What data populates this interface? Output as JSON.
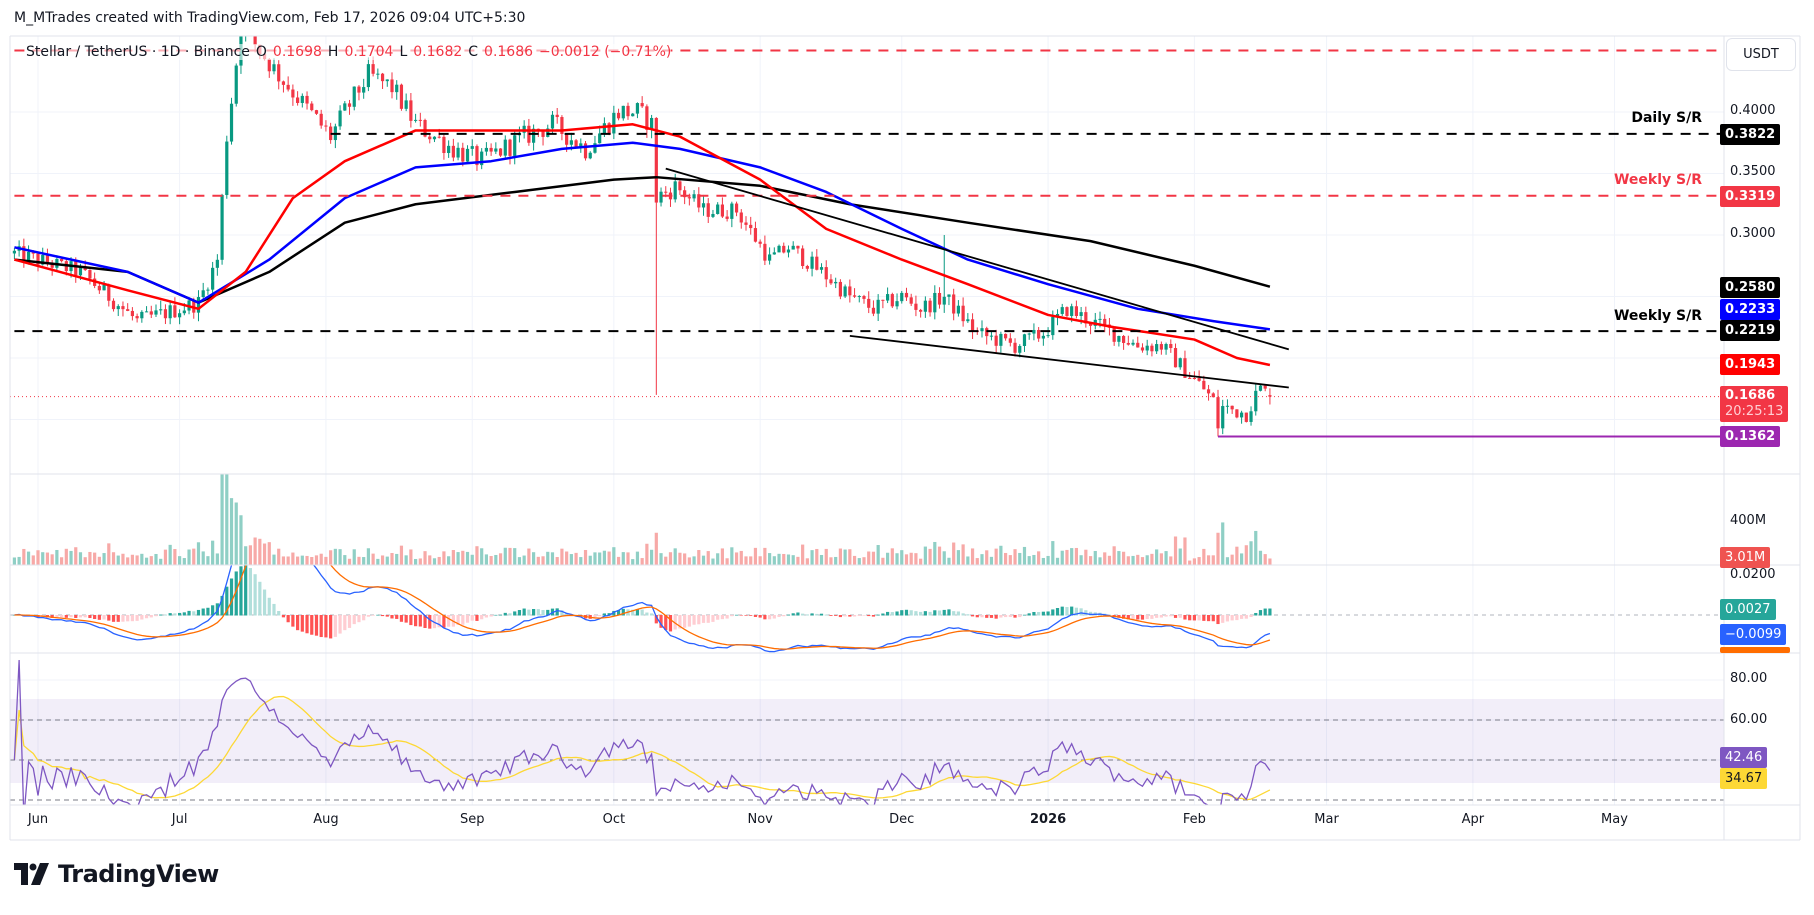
{
  "header": {
    "credit": "M_MTrades created with TradingView.com, Feb 17, 2026 09:04 UTC+5:30"
  },
  "legend": {
    "symbol": "Stellar / TetherUS · 1D · Binance",
    "o_label": "O",
    "o": "0.1698",
    "h_label": "H",
    "h": "0.1704",
    "l_label": "L",
    "l": "0.1682",
    "c_label": "C",
    "c": "0.1686",
    "change": "−0.0012 (−0.71%)"
  },
  "currency_button": "USDT",
  "brand": "TradingView",
  "colors": {
    "up": "#089981",
    "down": "#f23645",
    "ma50": "#ff0000",
    "ma100": "#0000ff",
    "ma200": "#000000",
    "macd": "#2962ff",
    "signal": "#ff6d00",
    "rsi": "#7e57c2",
    "rsi_ma": "#fdd835",
    "low_line": "#9c27b0"
  },
  "chart_data": {
    "type": "candlestick",
    "title": "Stellar / TetherUS · 1D · Binance",
    "x_unit": "days since 2025-06-01",
    "x_ticks": [
      {
        "label": "Jun",
        "day": 0
      },
      {
        "label": "Jul",
        "day": 30
      },
      {
        "label": "Aug",
        "day": 61
      },
      {
        "label": "Sep",
        "day": 92
      },
      {
        "label": "Oct",
        "day": 122
      },
      {
        "label": "Nov",
        "day": 153
      },
      {
        "label": "Dec",
        "day": 183
      },
      {
        "label": "2026",
        "day": 214
      },
      {
        "label": "Feb",
        "day": 245
      },
      {
        "label": "Mar",
        "day": 273
      },
      {
        "label": "Apr",
        "day": 304
      },
      {
        "label": "May",
        "day": 334
      }
    ],
    "y_ticks": [
      "0.4000",
      "0.3500",
      "0.3000"
    ],
    "y_tick_values": [
      0.4,
      0.35,
      0.3
    ],
    "price_path": [
      [
        -5,
        0.285
      ],
      [
        9,
        0.27
      ],
      [
        21,
        0.23
      ],
      [
        30,
        0.24
      ],
      [
        34,
        0.245
      ],
      [
        38,
        0.28
      ],
      [
        40,
        0.38
      ],
      [
        43,
        0.47
      ],
      [
        47,
        0.45
      ],
      [
        51,
        0.43
      ],
      [
        62,
        0.38
      ],
      [
        65,
        0.4
      ],
      [
        70,
        0.43
      ],
      [
        75,
        0.42
      ],
      [
        80,
        0.39
      ],
      [
        88,
        0.37
      ],
      [
        94,
        0.36
      ],
      [
        103,
        0.38
      ],
      [
        109,
        0.39
      ],
      [
        116,
        0.37
      ],
      [
        123,
        0.4
      ],
      [
        127,
        0.4
      ],
      [
        130,
        0.39
      ],
      [
        131,
        0.33
      ],
      [
        135,
        0.34
      ],
      [
        141,
        0.32
      ],
      [
        148,
        0.32
      ],
      [
        155,
        0.28
      ],
      [
        159,
        0.29
      ],
      [
        166,
        0.27
      ],
      [
        172,
        0.25
      ],
      [
        177,
        0.24
      ],
      [
        183,
        0.25
      ],
      [
        187,
        0.24
      ],
      [
        192,
        0.25
      ],
      [
        199,
        0.22
      ],
      [
        207,
        0.21
      ],
      [
        213,
        0.22
      ],
      [
        218,
        0.24
      ],
      [
        223,
        0.23
      ],
      [
        228,
        0.22
      ],
      [
        233,
        0.21
      ],
      [
        238,
        0.21
      ],
      [
        243,
        0.19
      ],
      [
        247,
        0.175
      ],
      [
        249,
        0.165
      ],
      [
        250,
        0.145
      ],
      [
        251,
        0.16
      ],
      [
        256,
        0.155
      ],
      [
        258,
        0.17
      ],
      [
        259,
        0.175
      ],
      [
        261,
        0.1686
      ]
    ],
    "wick_extremes": [
      {
        "day": 131,
        "low": 0.17
      },
      {
        "day": 192,
        "high": 0.3
      },
      {
        "day": 250,
        "low": 0.1362
      }
    ],
    "ma50": [
      [
        -5,
        0.28
      ],
      [
        19,
        0.255
      ],
      [
        34,
        0.24
      ],
      [
        44,
        0.27
      ],
      [
        54,
        0.33
      ],
      [
        65,
        0.36
      ],
      [
        80,
        0.385
      ],
      [
        96,
        0.385
      ],
      [
        111,
        0.385
      ],
      [
        126,
        0.39
      ],
      [
        136,
        0.38
      ],
      [
        153,
        0.345
      ],
      [
        167,
        0.305
      ],
      [
        183,
        0.28
      ],
      [
        197,
        0.26
      ],
      [
        214,
        0.235
      ],
      [
        228,
        0.225
      ],
      [
        245,
        0.215
      ],
      [
        254,
        0.2
      ],
      [
        261,
        0.1943
      ]
    ],
    "ma100": [
      [
        -5,
        0.29
      ],
      [
        19,
        0.27
      ],
      [
        34,
        0.245
      ],
      [
        49,
        0.28
      ],
      [
        65,
        0.33
      ],
      [
        80,
        0.355
      ],
      [
        96,
        0.36
      ],
      [
        111,
        0.37
      ],
      [
        126,
        0.375
      ],
      [
        136,
        0.37
      ],
      [
        153,
        0.355
      ],
      [
        167,
        0.335
      ],
      [
        183,
        0.305
      ],
      [
        197,
        0.28
      ],
      [
        214,
        0.26
      ],
      [
        233,
        0.24
      ],
      [
        249,
        0.23
      ],
      [
        261,
        0.2233
      ]
    ],
    "ma200": [
      [
        -5,
        0.28
      ],
      [
        19,
        0.27
      ],
      [
        34,
        0.245
      ],
      [
        49,
        0.27
      ],
      [
        65,
        0.31
      ],
      [
        80,
        0.325
      ],
      [
        101,
        0.335
      ],
      [
        122,
        0.345
      ],
      [
        131,
        0.347
      ],
      [
        153,
        0.34
      ],
      [
        172,
        0.325
      ],
      [
        197,
        0.31
      ],
      [
        223,
        0.295
      ],
      [
        245,
        0.275
      ],
      [
        261,
        0.258
      ]
    ],
    "trendlines": [
      {
        "from": [
          133,
          0.354
        ],
        "to": [
          265,
          0.207
        ]
      },
      {
        "from": [
          172,
          0.218
        ],
        "to": [
          265,
          0.176
        ]
      }
    ],
    "levels": [
      {
        "label": "Daily S/R",
        "value": 0.3822,
        "tag": "0.3822",
        "from_day": 62
      },
      {
        "label": "Weekly S/R",
        "value": 0.3319,
        "tag": "0.3319",
        "from_day": -5
      },
      {
        "label": "Weekly S/R",
        "value": 0.2219,
        "tag": "0.2219",
        "from_day": -5
      },
      {
        "label": "",
        "value": 0.45,
        "from_day": -5
      }
    ],
    "low_line": {
      "value": 0.1362,
      "tag": "0.1362",
      "from_day": 250
    },
    "last_price": {
      "value": 0.1686,
      "tag": "0.1686",
      "countdown": "20:25:13"
    },
    "ma_tags": {
      "ma200": "0.2580",
      "ma100": "0.2233",
      "ma50": "0.1943"
    },
    "volume": {
      "tick": "400M",
      "tag": "3.01M"
    },
    "macd": {
      "tick": "0.0200",
      "hist_tag": "0.0027",
      "macd_tag": "−0.0099"
    },
    "rsi": {
      "ticks": [
        "80.00",
        "60.00"
      ],
      "rsi_tag": "42.46",
      "ma_tag": "34.67",
      "upper": 70,
      "lower": 30
    }
  }
}
